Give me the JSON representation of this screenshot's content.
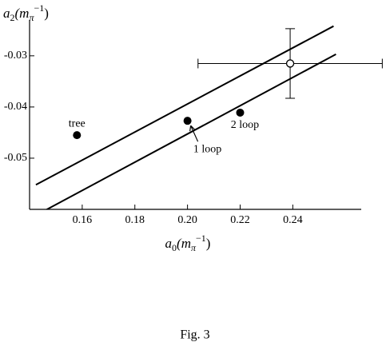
{
  "chart_data": {
    "type": "scatter",
    "x_label": {
      "base": "a",
      "sub": "0",
      "open": "(m",
      "unit_sub": "π",
      "unit_sup": "−1",
      "close": ")"
    },
    "y_label": {
      "base": "a",
      "sub": "2",
      "open": "(m",
      "unit_sub": "π",
      "unit_sup": "−1",
      "close": ")"
    },
    "caption": "Fig. 3",
    "xlim": [
      0.14,
      0.266
    ],
    "ylim": [
      -0.06,
      -0.023
    ],
    "xticks": [
      0.16,
      0.18,
      {
        "value": 0.2,
        "label": "0.20"
      },
      0.22,
      0.24
    ],
    "yticks": [
      -0.03,
      -0.04,
      -0.05
    ],
    "points": {
      "x": [
        0.158,
        0.2,
        0.22
      ],
      "values": [
        -0.0455,
        -0.0427,
        -0.0411
      ],
      "labels": [
        "tree",
        "1 loop",
        "2 loop"
      ]
    },
    "experiment": {
      "x": 0.239,
      "value": -0.0315,
      "xerr": 0.035,
      "yerr": 0.0068
    },
    "lines": [
      {
        "x": [
          0.1424,
          0.2555
        ],
        "values": [
          -0.0552,
          -0.0242
        ]
      },
      {
        "x": [
          0.143,
          0.2564
        ],
        "values": [
          -0.061,
          -0.0297
        ]
      }
    ]
  }
}
